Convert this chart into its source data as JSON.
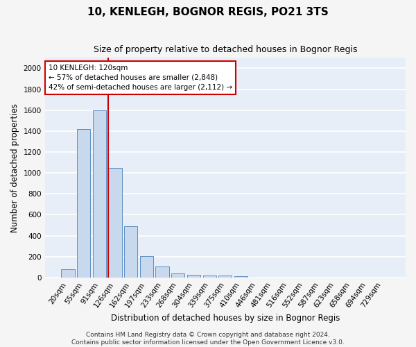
{
  "title": "10, KENLEGH, BOGNOR REGIS, PO21 3TS",
  "subtitle": "Size of property relative to detached houses in Bognor Regis",
  "xlabel": "Distribution of detached houses by size in Bognor Regis",
  "ylabel": "Number of detached properties",
  "bar_color": "#c9d9ed",
  "bar_edge_color": "#5b8ec4",
  "bg_color": "#e8eef8",
  "grid_color": "#ffffff",
  "fig_bg_color": "#f5f5f5",
  "categories": [
    "20sqm",
    "55sqm",
    "91sqm",
    "126sqm",
    "162sqm",
    "197sqm",
    "233sqm",
    "268sqm",
    "304sqm",
    "339sqm",
    "375sqm",
    "410sqm",
    "446sqm",
    "481sqm",
    "516sqm",
    "552sqm",
    "587sqm",
    "623sqm",
    "658sqm",
    "694sqm",
    "729sqm"
  ],
  "values": [
    80,
    1420,
    1600,
    1050,
    490,
    205,
    105,
    42,
    28,
    22,
    18,
    10,
    0,
    0,
    0,
    0,
    0,
    0,
    0,
    0,
    0
  ],
  "red_line_x": 2.575,
  "annotation_text": "10 KENLEGH: 120sqm\n← 57% of detached houses are smaller (2,848)\n42% of semi-detached houses are larger (2,112) →",
  "annotation_box_color": "#ffffff",
  "annotation_box_edge_color": "#cc0000",
  "ylim": [
    0,
    2100
  ],
  "yticks": [
    0,
    200,
    400,
    600,
    800,
    1000,
    1200,
    1400,
    1600,
    1800,
    2000
  ],
  "footer_text": "Contains HM Land Registry data © Crown copyright and database right 2024.\nContains public sector information licensed under the Open Government Licence v3.0.",
  "title_fontsize": 11,
  "subtitle_fontsize": 9,
  "xlabel_fontsize": 8.5,
  "ylabel_fontsize": 8.5,
  "tick_fontsize": 7.5,
  "annotation_fontsize": 7.5,
  "footer_fontsize": 6.5
}
